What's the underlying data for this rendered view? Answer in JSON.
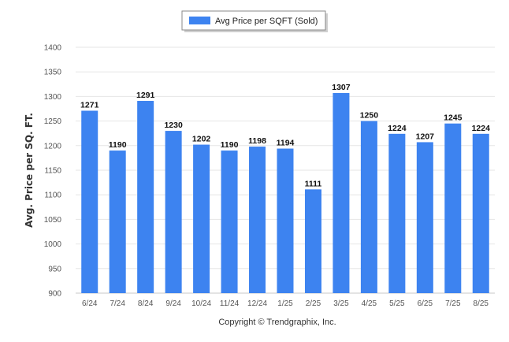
{
  "chart_data": {
    "type": "bar",
    "categories": [
      "6/24",
      "7/24",
      "8/24",
      "9/24",
      "10/24",
      "11/24",
      "12/24",
      "1/25",
      "2/25",
      "3/25",
      "4/25",
      "5/25",
      "6/25",
      "7/25",
      "8/25"
    ],
    "series": [
      {
        "name": "Avg Price per SQFT (Sold)",
        "values": [
          1271,
          1190,
          1291,
          1230,
          1202,
          1190,
          1198,
          1194,
          1111,
          1307,
          1250,
          1224,
          1207,
          1245,
          1224
        ]
      }
    ],
    "ylabel": "Avg. Price per SQ. FT.",
    "ylim": [
      900,
      1400
    ],
    "yticks": [
      900,
      950,
      1000,
      1050,
      1100,
      1150,
      1200,
      1250,
      1300,
      1350,
      1400
    ],
    "grid": true,
    "legend": "top-center",
    "bar_color": "#3d83f0"
  },
  "footer": {
    "credit": "Copyright © Trendgraphix, Inc."
  }
}
